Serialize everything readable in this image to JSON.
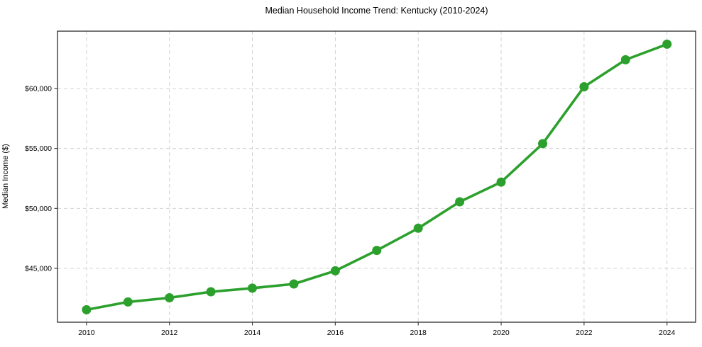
{
  "chart_data": {
    "type": "line",
    "title": "Median Household Income Trend: Kentucky (2010-2024)",
    "ylabel": "Median Income ($)",
    "xlabel": "",
    "x": [
      2010,
      2011,
      2012,
      2013,
      2014,
      2015,
      2016,
      2017,
      2018,
      2019,
      2020,
      2021,
      2022,
      2023,
      2024
    ],
    "series": [
      {
        "name": "Median household income",
        "values": [
          41550,
          42200,
          42550,
          43050,
          43350,
          43700,
          44800,
          46500,
          48350,
          50550,
          52200,
          55400,
          60150,
          62400,
          63700
        ],
        "color": "#2ca02c"
      }
    ],
    "xlim": [
      2009.3,
      2024.69
    ],
    "ylim": [
      40510,
      64785
    ],
    "x_ticks": [
      2010,
      2012,
      2014,
      2016,
      2018,
      2020,
      2022,
      2024
    ],
    "x_tick_labels": [
      "2010",
      "2012",
      "2014",
      "2016",
      "2018",
      "2020",
      "2022",
      "2024"
    ],
    "y_ticks": [
      45000,
      50000,
      55000,
      60000
    ],
    "y_tick_labels": [
      "$45,000",
      "$50,000",
      "$55,000",
      "$60,000"
    ],
    "grid": true,
    "grid_style": "dashed",
    "legend_position": "none",
    "marker": "circle"
  },
  "style": {
    "line_color": "#2ca02c",
    "marker_color": "#2ca02c",
    "grid_color": "#cccccc",
    "frame_color": "#1a1a1a",
    "tick_color": "#333333",
    "text_color": "#000000",
    "background": "#ffffff"
  }
}
